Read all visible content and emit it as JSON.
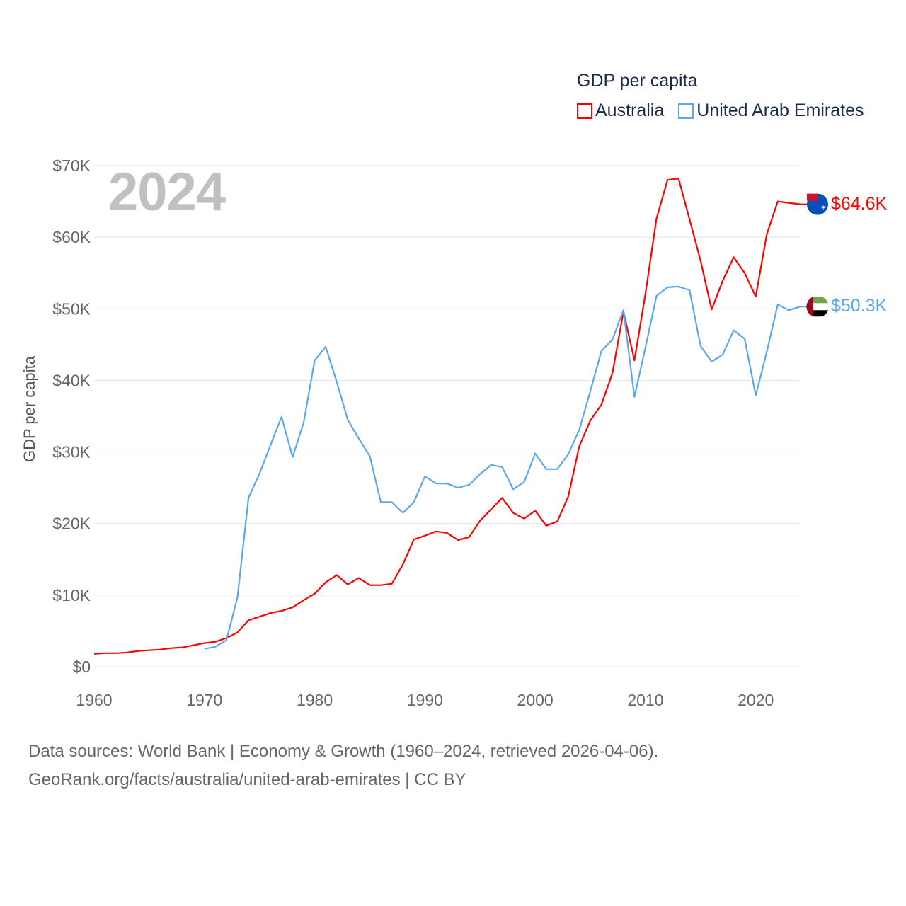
{
  "legend": {
    "title": "GDP per capita",
    "items": [
      {
        "label": "Australia",
        "color": "#ff0000"
      },
      {
        "label": "United Arab Emirates",
        "color": "#5ba7ec"
      }
    ]
  },
  "year_label": "2024",
  "footer": {
    "line1": "Data sources: World Bank | Economy & Growth (1960–2024, retrieved 2026-04-06).",
    "line2": "GeoRank.org/facts/australia/united-arab-emirates | CC BY"
  },
  "chart_data": {
    "type": "line",
    "title": "GDP per capita",
    "xlabel": "",
    "ylabel": "GDP per capita",
    "xlim": [
      1960,
      2024
    ],
    "ylim": [
      0,
      70000
    ],
    "x_ticks": [
      1960,
      1970,
      1980,
      1990,
      2000,
      2010,
      2020
    ],
    "x_tick_labels": [
      "1960",
      "1970",
      "1980",
      "1990",
      "2000",
      "2010",
      "2020"
    ],
    "y_ticks": [
      0,
      10000,
      20000,
      30000,
      40000,
      50000,
      60000,
      70000
    ],
    "y_tick_labels": [
      "$0",
      "$10K",
      "$20K",
      "$30K",
      "$40K",
      "$50K",
      "$60K",
      "$70K"
    ],
    "grid": true,
    "legend_position": "top-right",
    "series": [
      {
        "name": "Australia",
        "color": "#ff0000",
        "start_year": 1960,
        "end_label": "$64.6K",
        "values": [
          1800,
          1900,
          1900,
          2000,
          2200,
          2300,
          2400,
          2600,
          2700,
          3000,
          3300,
          3500,
          4000,
          4800,
          6500,
          7000,
          7500,
          7800,
          8300,
          9300,
          10200,
          11800,
          12800,
          11500,
          12400,
          11400,
          11400,
          11600,
          14300,
          17800,
          18300,
          18900,
          18700,
          17700,
          18100,
          20400,
          22000,
          23600,
          21500,
          20700,
          21800,
          19700,
          20300,
          23800,
          30800,
          34400,
          36600,
          41000,
          49600,
          42800,
          52100,
          62600,
          68000,
          68200,
          62500,
          56700,
          49900,
          53900,
          57200,
          55000,
          51700,
          60400,
          65000,
          64800,
          64600
        ]
      },
      {
        "name": "United Arab Emirates",
        "color": "#5ba7ec",
        "start_year": 1970,
        "end_label": "$50.3K",
        "values": [
          2500,
          2800,
          3700,
          9700,
          23600,
          27000,
          31000,
          34900,
          29300,
          34100,
          42800,
          44700,
          39800,
          34500,
          31900,
          29400,
          23000,
          23000,
          21500,
          23000,
          26600,
          25600,
          25600,
          25000,
          25400,
          26900,
          28200,
          27900,
          24800,
          25800,
          29800,
          27600,
          27600,
          29700,
          33100,
          38500,
          44100,
          45700,
          49800,
          37700,
          44600,
          51800,
          53000,
          53100,
          52600,
          44800,
          42600,
          43600,
          47000,
          45800,
          37900,
          44000,
          50600,
          49800,
          50300
        ]
      }
    ]
  }
}
